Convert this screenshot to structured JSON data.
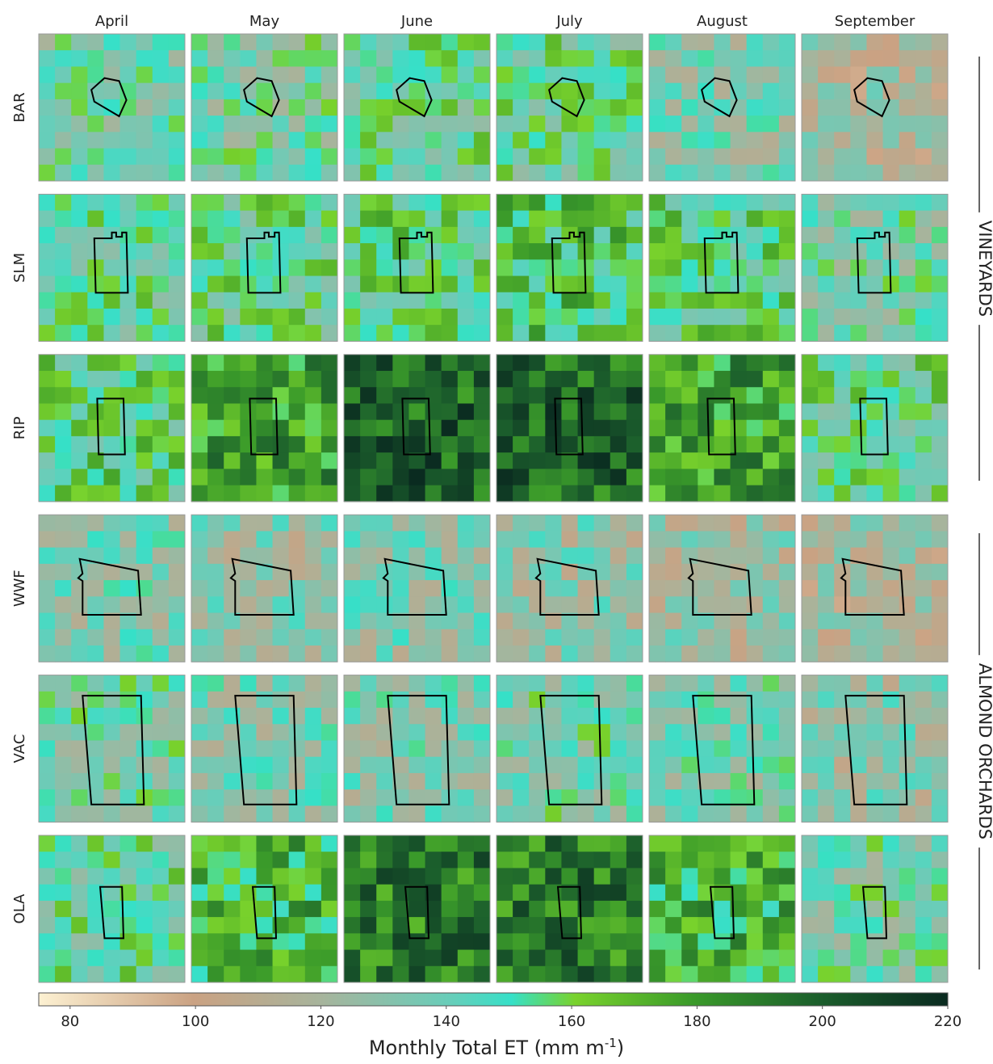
{
  "columns": [
    "April",
    "May",
    "June",
    "July",
    "August",
    "September"
  ],
  "rows": [
    "BAR",
    "SLM",
    "RIP",
    "WWF",
    "VAC",
    "OLA"
  ],
  "groups": [
    "VINEYARDS",
    "ALMOND ORCHARDS"
  ],
  "colorbar": {
    "lim": [
      75,
      220
    ],
    "ticks": [
      80,
      100,
      120,
      140,
      160,
      180,
      200,
      220
    ],
    "label": {
      "text": "Monthly Total ET (mm m",
      "sup": "-1",
      "tail": ")"
    }
  }
}
